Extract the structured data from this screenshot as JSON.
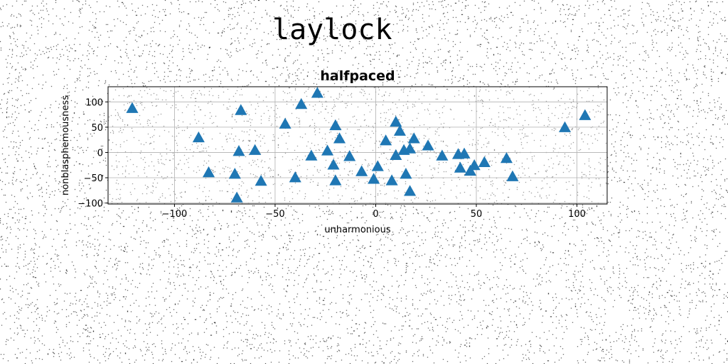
{
  "figure": {
    "suptitle": "laylock"
  },
  "chart_data": {
    "type": "scatter",
    "title": "halfpaced",
    "xlabel": "unharmonious",
    "ylabel": "nonblasphemousness",
    "xlim": [
      -133,
      115
    ],
    "ylim": [
      -102,
      130
    ],
    "xticks": [
      -100,
      -50,
      0,
      50,
      100
    ],
    "yticks": [
      -100,
      -50,
      0,
      50,
      100
    ],
    "grid": true,
    "marker": "triangle-up",
    "color": "#1f77b4",
    "x": [
      -121,
      -67,
      -88,
      -68,
      -60,
      -45,
      -37,
      -29,
      -20,
      -18,
      -24,
      -21,
      -32,
      -13,
      -20,
      -40,
      -57,
      -70,
      -83,
      -69,
      -7,
      -1,
      1,
      5,
      10,
      12,
      14,
      17,
      19,
      10,
      26,
      33,
      41,
      44,
      42,
      47,
      49,
      54,
      65,
      68,
      94,
      104,
      15,
      8,
      17
    ],
    "y": [
      87,
      83,
      29,
      2,
      4,
      56,
      95,
      117,
      53,
      27,
      3,
      -25,
      -7,
      -8,
      -56,
      -50,
      -57,
      -43,
      -40,
      -90,
      -38,
      -53,
      -28,
      23,
      60,
      42,
      4,
      7,
      27,
      -6,
      13,
      -7,
      -4,
      -3,
      -31,
      -37,
      -26,
      -20,
      -12,
      -48,
      49,
      73,
      -43,
      -56,
      -77
    ]
  }
}
